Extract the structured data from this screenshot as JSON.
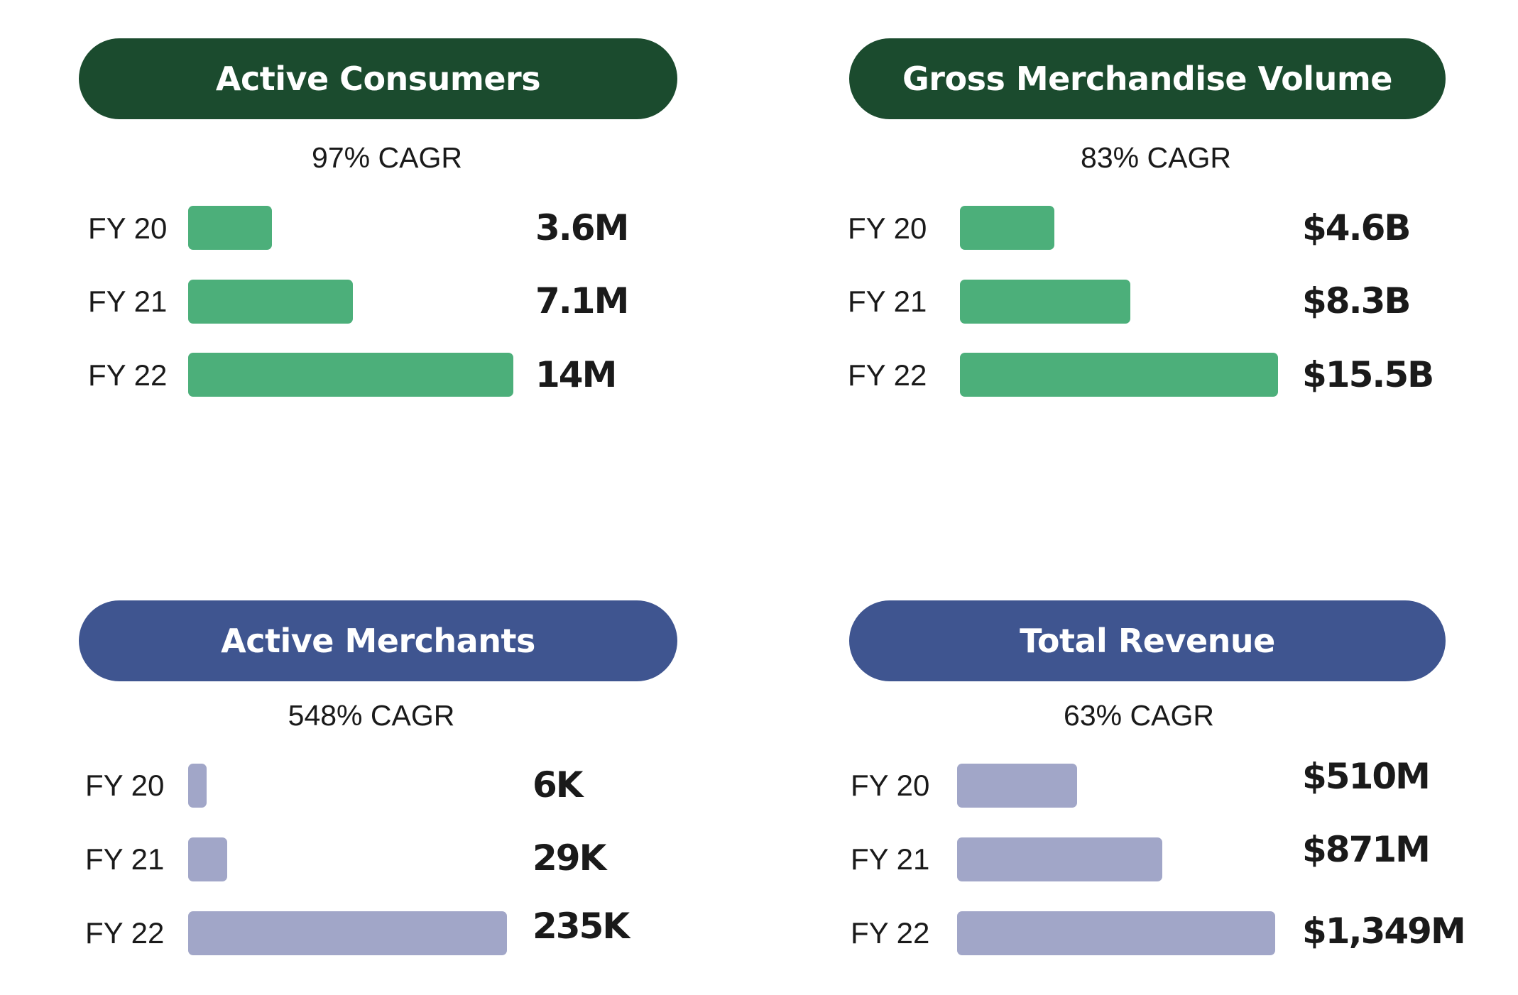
{
  "colors": {
    "green_header": "#1b4b2e",
    "green_bar": "#4caf7a",
    "blue_header": "#3f5590",
    "blue_bar": "#a1a6c8",
    "text": "#1a1a1a"
  },
  "chart_data": [
    {
      "type": "bar",
      "orientation": "horizontal",
      "title": "Active Consumers",
      "subtitle": "97% CAGR",
      "categories": [
        "FY 20",
        "FY 21",
        "FY 22"
      ],
      "values": [
        3.6,
        7.1,
        14
      ],
      "unit": "M",
      "value_labels": [
        "3.6M",
        "7.1M",
        "14M"
      ],
      "xlim": [
        0,
        14
      ],
      "grid": false,
      "legend": "none"
    },
    {
      "type": "bar",
      "orientation": "horizontal",
      "title": "Gross Merchandise Volume",
      "subtitle": "83% CAGR",
      "categories": [
        "FY 20",
        "FY 21",
        "FY 22"
      ],
      "values": [
        4.6,
        8.3,
        15.5
      ],
      "unit": "$B",
      "value_labels": [
        "$4.6B",
        "$8.3B",
        "$15.5B"
      ],
      "xlim": [
        0,
        15.5
      ],
      "grid": false,
      "legend": "none"
    },
    {
      "type": "bar",
      "orientation": "horizontal",
      "title": "Active Merchants",
      "subtitle": "548% CAGR",
      "categories": [
        "FY 20",
        "FY 21",
        "FY 22"
      ],
      "values": [
        6,
        29,
        235
      ],
      "unit": "K",
      "value_labels": [
        "6K",
        "29K",
        "235K"
      ],
      "xlim": [
        0,
        235
      ],
      "grid": false,
      "legend": "none"
    },
    {
      "type": "bar",
      "orientation": "horizontal",
      "title": "Total Revenue",
      "subtitle": "63% CAGR",
      "categories": [
        "FY 20",
        "FY 21",
        "FY 22"
      ],
      "values": [
        510,
        871,
        1349
      ],
      "unit": "$M",
      "value_labels": [
        "$510M",
        "$871M",
        "$1,349M"
      ],
      "xlim": [
        0,
        1349
      ],
      "grid": false,
      "legend": "none"
    }
  ]
}
